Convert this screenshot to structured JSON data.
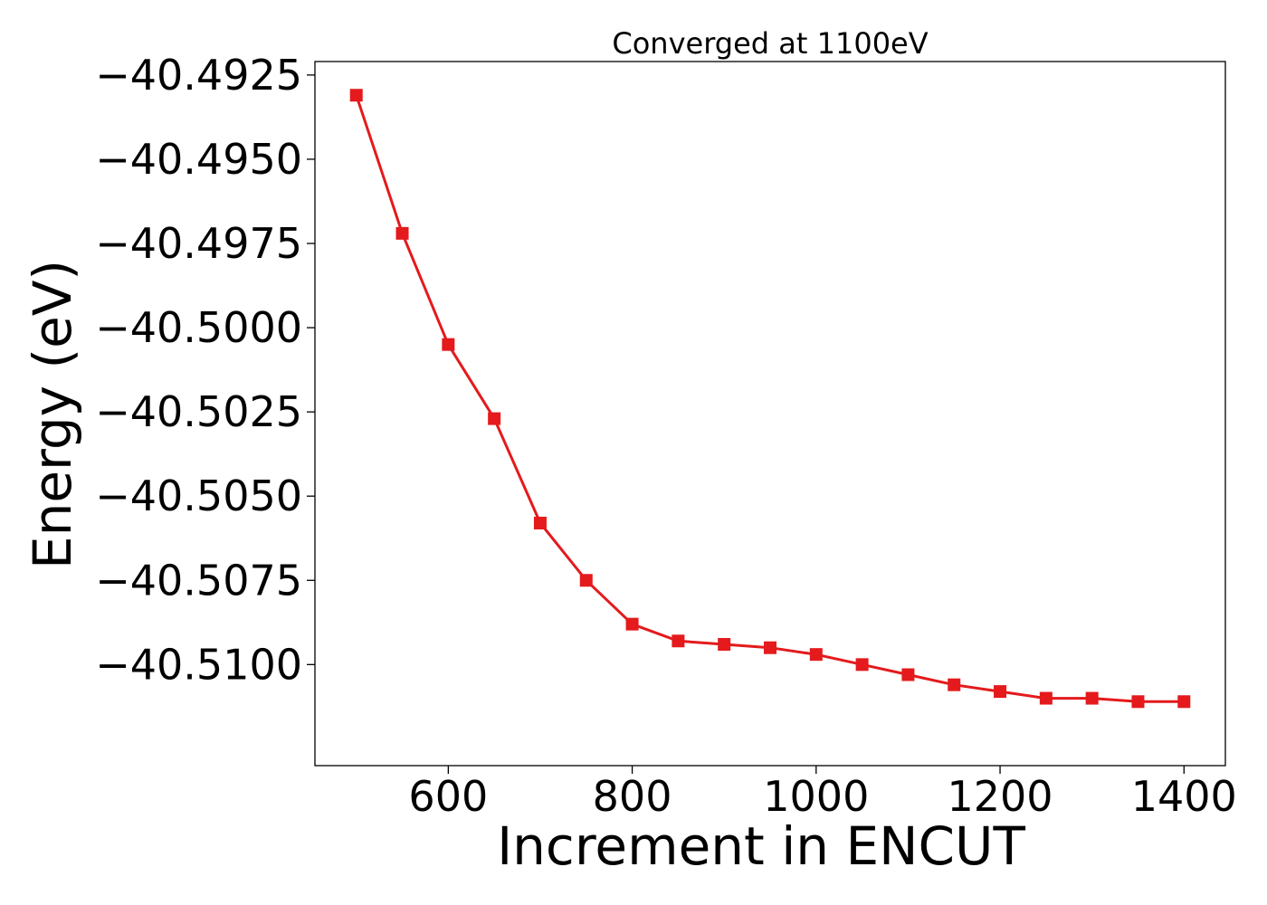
{
  "chart_data": {
    "type": "line",
    "title": "Converged at 1100eV",
    "xlabel": "Increment in ENCUT",
    "ylabel": "Energy (eV)",
    "x": [
      500,
      550,
      600,
      650,
      700,
      750,
      800,
      850,
      900,
      950,
      1000,
      1050,
      1100,
      1150,
      1200,
      1250,
      1300,
      1350,
      1400
    ],
    "series": [
      {
        "values": [
          -40.4931,
          -40.4972,
          -40.5005,
          -40.5027,
          -40.5058,
          -40.5075,
          -40.5088,
          -40.5093,
          -40.5094,
          -40.5095,
          -40.5097,
          -40.51,
          -40.5103,
          -40.5106,
          -40.5108,
          -40.511,
          -40.511,
          -40.5111,
          -40.5111
        ]
      }
    ],
    "xlim": [
      455,
      1445
    ],
    "ylim": [
      -40.513,
      -40.4921
    ],
    "xticks": [
      600,
      800,
      1000,
      1200,
      1400
    ],
    "xtick_labels": [
      "600",
      "800",
      "1000",
      "1200",
      "1400"
    ],
    "yticks": [
      -40.4925,
      -40.495,
      -40.4975,
      -40.5,
      -40.5025,
      -40.505,
      -40.5075,
      -40.51
    ],
    "ytick_labels": [
      "−40.4925",
      "−40.4950",
      "−40.4975",
      "−40.5000",
      "−40.5025",
      "−40.5050",
      "−40.5075",
      "−40.5100"
    ],
    "grid": false,
    "line_color": "#e41a1c",
    "marker": "square"
  }
}
